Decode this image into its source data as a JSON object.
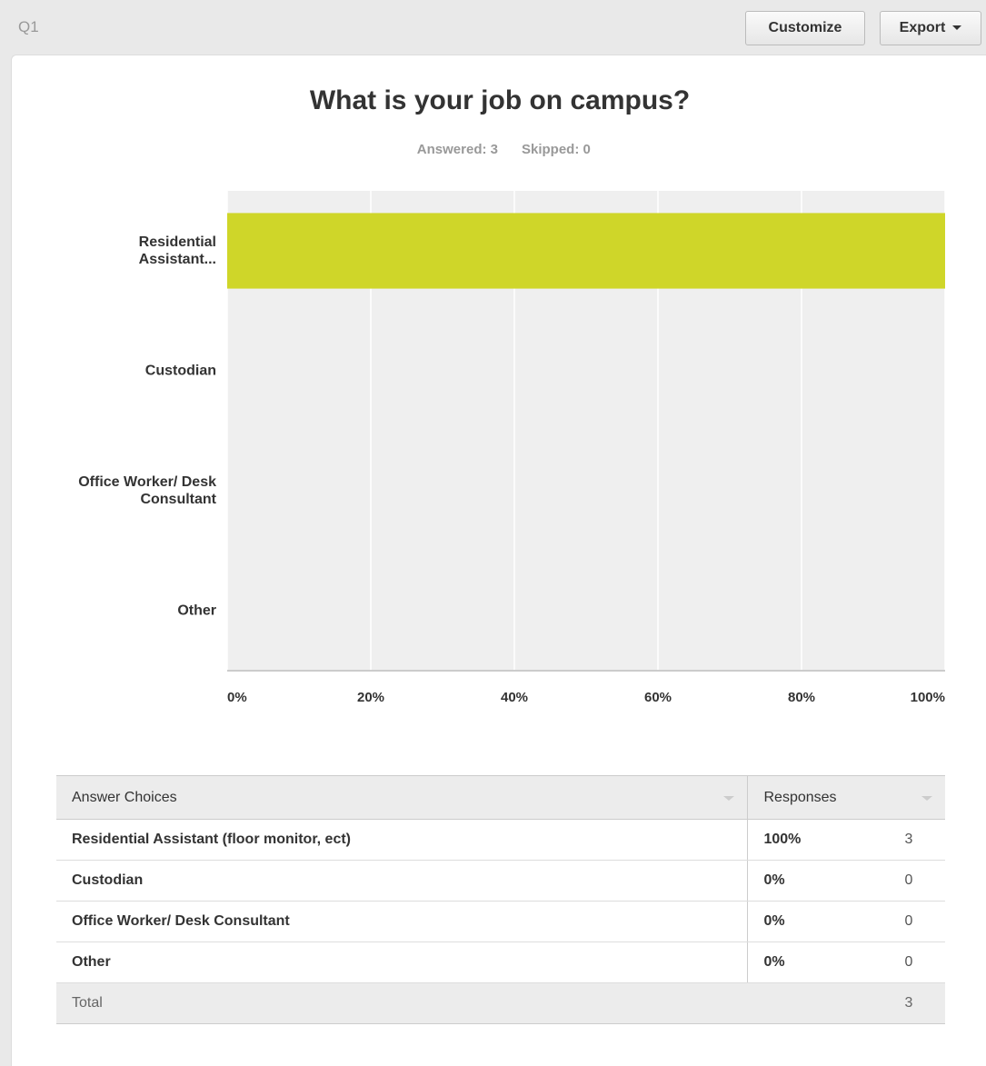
{
  "header": {
    "question": "Q1",
    "buttons": [
      "Customize",
      "Export"
    ]
  },
  "chart_data": {
    "type": "bar",
    "orientation": "horizontal",
    "title": "What is your job on campus?",
    "subtitle": [
      "Answered: 3",
      "Skipped: 0"
    ],
    "categories": [
      "Residential Assistant...",
      "Custodian",
      "Office Worker/ Desk Consultant",
      "Other"
    ],
    "values": [
      100,
      0,
      0,
      0
    ],
    "color": "#cfd629",
    "xlim": [
      0,
      100
    ],
    "xticks": [
      {
        "value": 0,
        "label": "0%"
      },
      {
        "value": 20,
        "label": "20%"
      },
      {
        "value": 40,
        "label": "40%"
      },
      {
        "value": 60,
        "label": "60%"
      },
      {
        "value": 80,
        "label": "80%"
      },
      {
        "value": 100,
        "label": "100%"
      }
    ],
    "grid": true
  },
  "table": {
    "headers": [
      "Answer Choices",
      "Responses"
    ],
    "rows": [
      [
        "Residential Assistant (floor monitor, ect)",
        "100%",
        3
      ],
      [
        "Custodian",
        "0%",
        0
      ],
      [
        "Office Worker/ Desk Consultant",
        "0%",
        0
      ],
      [
        "Other",
        "0%",
        0
      ]
    ],
    "total": [
      "Total",
      3
    ]
  }
}
